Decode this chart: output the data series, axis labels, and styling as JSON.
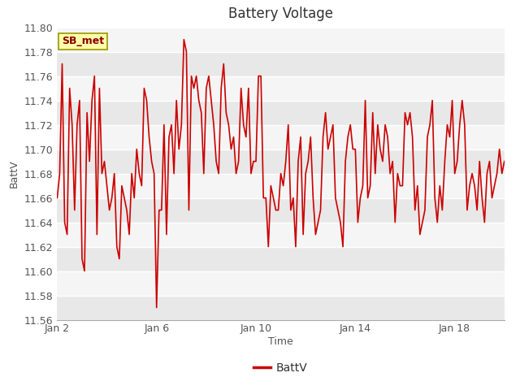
{
  "title": "Battery Voltage",
  "xlabel": "Time",
  "ylabel": "BattV",
  "legend_label": "BattV",
  "annotation_text": "SB_met",
  "line_color": "#cc0000",
  "bg_color": "#ffffff",
  "plot_bg_color": "#ffffff",
  "band_color_dark": "#e8e8e8",
  "band_color_light": "#f5f5f5",
  "ylim": [
    11.56,
    11.8
  ],
  "yticks": [
    11.56,
    11.58,
    11.6,
    11.62,
    11.64,
    11.66,
    11.68,
    11.7,
    11.72,
    11.74,
    11.76,
    11.78,
    11.8
  ],
  "x_tick_labels": [
    "Jan 2",
    "Jan 6",
    "Jan 10",
    "Jan 14",
    "Jan 18"
  ],
  "x_tick_positions": [
    1,
    5,
    9,
    13,
    17
  ],
  "data_x": [
    1.0,
    1.1,
    1.2,
    1.3,
    1.4,
    1.5,
    1.6,
    1.7,
    1.8,
    1.9,
    2.0,
    2.1,
    2.2,
    2.3,
    2.4,
    2.5,
    2.6,
    2.7,
    2.8,
    2.9,
    3.0,
    3.1,
    3.2,
    3.3,
    3.4,
    3.5,
    3.6,
    3.7,
    3.8,
    3.9,
    4.0,
    4.1,
    4.2,
    4.3,
    4.4,
    4.5,
    4.6,
    4.7,
    4.8,
    4.9,
    5.0,
    5.1,
    5.2,
    5.3,
    5.4,
    5.5,
    5.6,
    5.7,
    5.8,
    5.9,
    6.0,
    6.1,
    6.2,
    6.3,
    6.4,
    6.5,
    6.6,
    6.7,
    6.8,
    6.9,
    7.0,
    7.1,
    7.2,
    7.3,
    7.4,
    7.5,
    7.6,
    7.7,
    7.8,
    7.9,
    8.0,
    8.1,
    8.2,
    8.3,
    8.4,
    8.5,
    8.6,
    8.7,
    8.8,
    8.9,
    9.0,
    9.1,
    9.2,
    9.3,
    9.4,
    9.5,
    9.6,
    9.7,
    9.8,
    9.9,
    10.0,
    10.1,
    10.2,
    10.3,
    10.4,
    10.5,
    10.6,
    10.7,
    10.8,
    10.9,
    11.0,
    11.1,
    11.2,
    11.3,
    11.4,
    11.5,
    11.6,
    11.7,
    11.8,
    11.9,
    12.0,
    12.1,
    12.2,
    12.3,
    12.4,
    12.5,
    12.6,
    12.7,
    12.8,
    12.9,
    13.0,
    13.1,
    13.2,
    13.3,
    13.4,
    13.5,
    13.6,
    13.7,
    13.8,
    13.9,
    14.0,
    14.1,
    14.2,
    14.3,
    14.4,
    14.5,
    14.6,
    14.7,
    14.8,
    14.9,
    15.0,
    15.1,
    15.2,
    15.3,
    15.4,
    15.5,
    15.6,
    15.7,
    15.8,
    15.9,
    16.0,
    16.1,
    16.2,
    16.3,
    16.4,
    16.5,
    16.6,
    16.7,
    16.8,
    16.9,
    17.0,
    17.1,
    17.2,
    17.3,
    17.4,
    17.5,
    17.6,
    17.7,
    17.8,
    17.9,
    18.0,
    18.1,
    18.2,
    18.3,
    18.4,
    18.5,
    18.6,
    18.7,
    18.8,
    18.9,
    19.0
  ],
  "data_y": [
    11.66,
    11.68,
    11.77,
    11.64,
    11.63,
    11.75,
    11.72,
    11.65,
    11.72,
    11.74,
    11.61,
    11.6,
    11.73,
    11.69,
    11.74,
    11.76,
    11.63,
    11.75,
    11.68,
    11.69,
    11.67,
    11.65,
    11.66,
    11.68,
    11.62,
    11.61,
    11.67,
    11.66,
    11.65,
    11.63,
    11.68,
    11.66,
    11.7,
    11.68,
    11.67,
    11.75,
    11.74,
    11.71,
    11.69,
    11.68,
    11.57,
    11.65,
    11.65,
    11.72,
    11.63,
    11.71,
    11.72,
    11.68,
    11.74,
    11.7,
    11.72,
    11.79,
    11.78,
    11.65,
    11.76,
    11.75,
    11.76,
    11.74,
    11.73,
    11.68,
    11.75,
    11.76,
    11.74,
    11.72,
    11.69,
    11.68,
    11.75,
    11.77,
    11.73,
    11.72,
    11.7,
    11.71,
    11.68,
    11.69,
    11.75,
    11.72,
    11.71,
    11.75,
    11.68,
    11.69,
    11.69,
    11.76,
    11.76,
    11.66,
    11.66,
    11.62,
    11.67,
    11.66,
    11.65,
    11.65,
    11.68,
    11.67,
    11.69,
    11.72,
    11.65,
    11.66,
    11.62,
    11.69,
    11.71,
    11.63,
    11.68,
    11.69,
    11.71,
    11.66,
    11.63,
    11.64,
    11.65,
    11.71,
    11.73,
    11.7,
    11.71,
    11.72,
    11.66,
    11.65,
    11.64,
    11.62,
    11.69,
    11.71,
    11.72,
    11.7,
    11.7,
    11.64,
    11.66,
    11.67,
    11.74,
    11.66,
    11.67,
    11.73,
    11.68,
    11.72,
    11.7,
    11.69,
    11.72,
    11.71,
    11.68,
    11.69,
    11.64,
    11.68,
    11.67,
    11.67,
    11.73,
    11.72,
    11.73,
    11.71,
    11.65,
    11.67,
    11.63,
    11.64,
    11.65,
    11.71,
    11.72,
    11.74,
    11.66,
    11.64,
    11.67,
    11.65,
    11.69,
    11.72,
    11.71,
    11.74,
    11.68,
    11.69,
    11.72,
    11.74,
    11.72,
    11.65,
    11.67,
    11.68,
    11.67,
    11.65,
    11.69,
    11.66,
    11.64,
    11.68,
    11.69,
    11.66,
    11.67,
    11.68,
    11.7,
    11.68,
    11.69
  ]
}
